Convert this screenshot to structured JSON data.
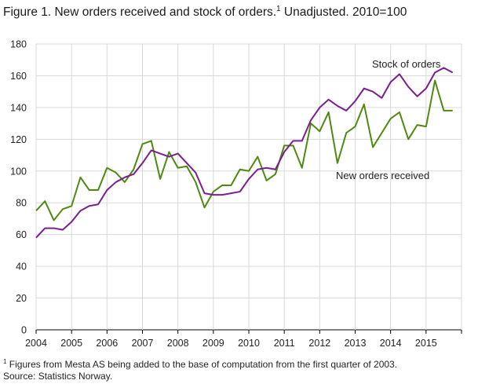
{
  "title": {
    "main": "Figure 1. New orders received and stock of orders.",
    "sup": "1",
    "rest": " Unadjusted. 2010=100"
  },
  "footnote": {
    "sup": "1",
    "text": " Figures from Mesta AS being added to the base of computation from the first quarter of 2003."
  },
  "source": "Source: Statistics Norway.",
  "chart_data": {
    "type": "line",
    "title": "Figure 1. New orders received and stock of orders. Unadjusted. 2010=100",
    "xlabel": "",
    "ylabel": "",
    "ylim": [
      0,
      180
    ],
    "yticks": [
      0,
      20,
      40,
      60,
      80,
      100,
      120,
      140,
      160,
      180
    ],
    "xticks": [
      "2004",
      "2005",
      "2006",
      "2007",
      "2008",
      "2009",
      "2010",
      "2011",
      "2012",
      "2013",
      "2014",
      "2015"
    ],
    "grid": true,
    "x": [
      "2004Q1",
      "2004Q2",
      "2004Q3",
      "2004Q4",
      "2005Q1",
      "2005Q2",
      "2005Q3",
      "2005Q4",
      "2006Q1",
      "2006Q2",
      "2006Q3",
      "2006Q4",
      "2007Q1",
      "2007Q2",
      "2007Q3",
      "2007Q4",
      "2008Q1",
      "2008Q2",
      "2008Q3",
      "2008Q4",
      "2009Q1",
      "2009Q2",
      "2009Q3",
      "2009Q4",
      "2010Q1",
      "2010Q2",
      "2010Q3",
      "2010Q4",
      "2011Q1",
      "2011Q2",
      "2011Q3",
      "2011Q4",
      "2012Q1",
      "2012Q2",
      "2012Q3",
      "2012Q4",
      "2013Q1",
      "2013Q2",
      "2013Q3",
      "2013Q4",
      "2014Q1",
      "2014Q2",
      "2014Q3",
      "2014Q4",
      "2015Q1",
      "2015Q2",
      "2015Q3",
      "2015Q4"
    ],
    "series": [
      {
        "name": "Stock of orders",
        "color": "#7b1e8f",
        "values": [
          58,
          64,
          64,
          63,
          68,
          75,
          78,
          79,
          88,
          93,
          96,
          98,
          105,
          113,
          111,
          109,
          111,
          105,
          99,
          86,
          85,
          85,
          86,
          87,
          95,
          101,
          102,
          101,
          112,
          119,
          119,
          132,
          140,
          145,
          141,
          138,
          144,
          152,
          150,
          146,
          156,
          161,
          153,
          147,
          152,
          162,
          165,
          162
        ]
      },
      {
        "name": "New orders received",
        "color": "#4f8a10",
        "values": [
          75,
          81,
          69,
          76,
          78,
          96,
          88,
          88,
          102,
          99,
          93,
          101,
          117,
          119,
          95,
          112,
          102,
          103,
          93,
          77,
          87,
          91,
          91,
          101,
          100,
          109,
          94,
          98,
          116,
          116,
          102,
          130,
          125,
          137,
          105,
          124,
          128,
          142,
          115,
          124,
          133,
          137,
          120,
          129,
          128,
          157,
          138,
          138
        ]
      }
    ]
  }
}
